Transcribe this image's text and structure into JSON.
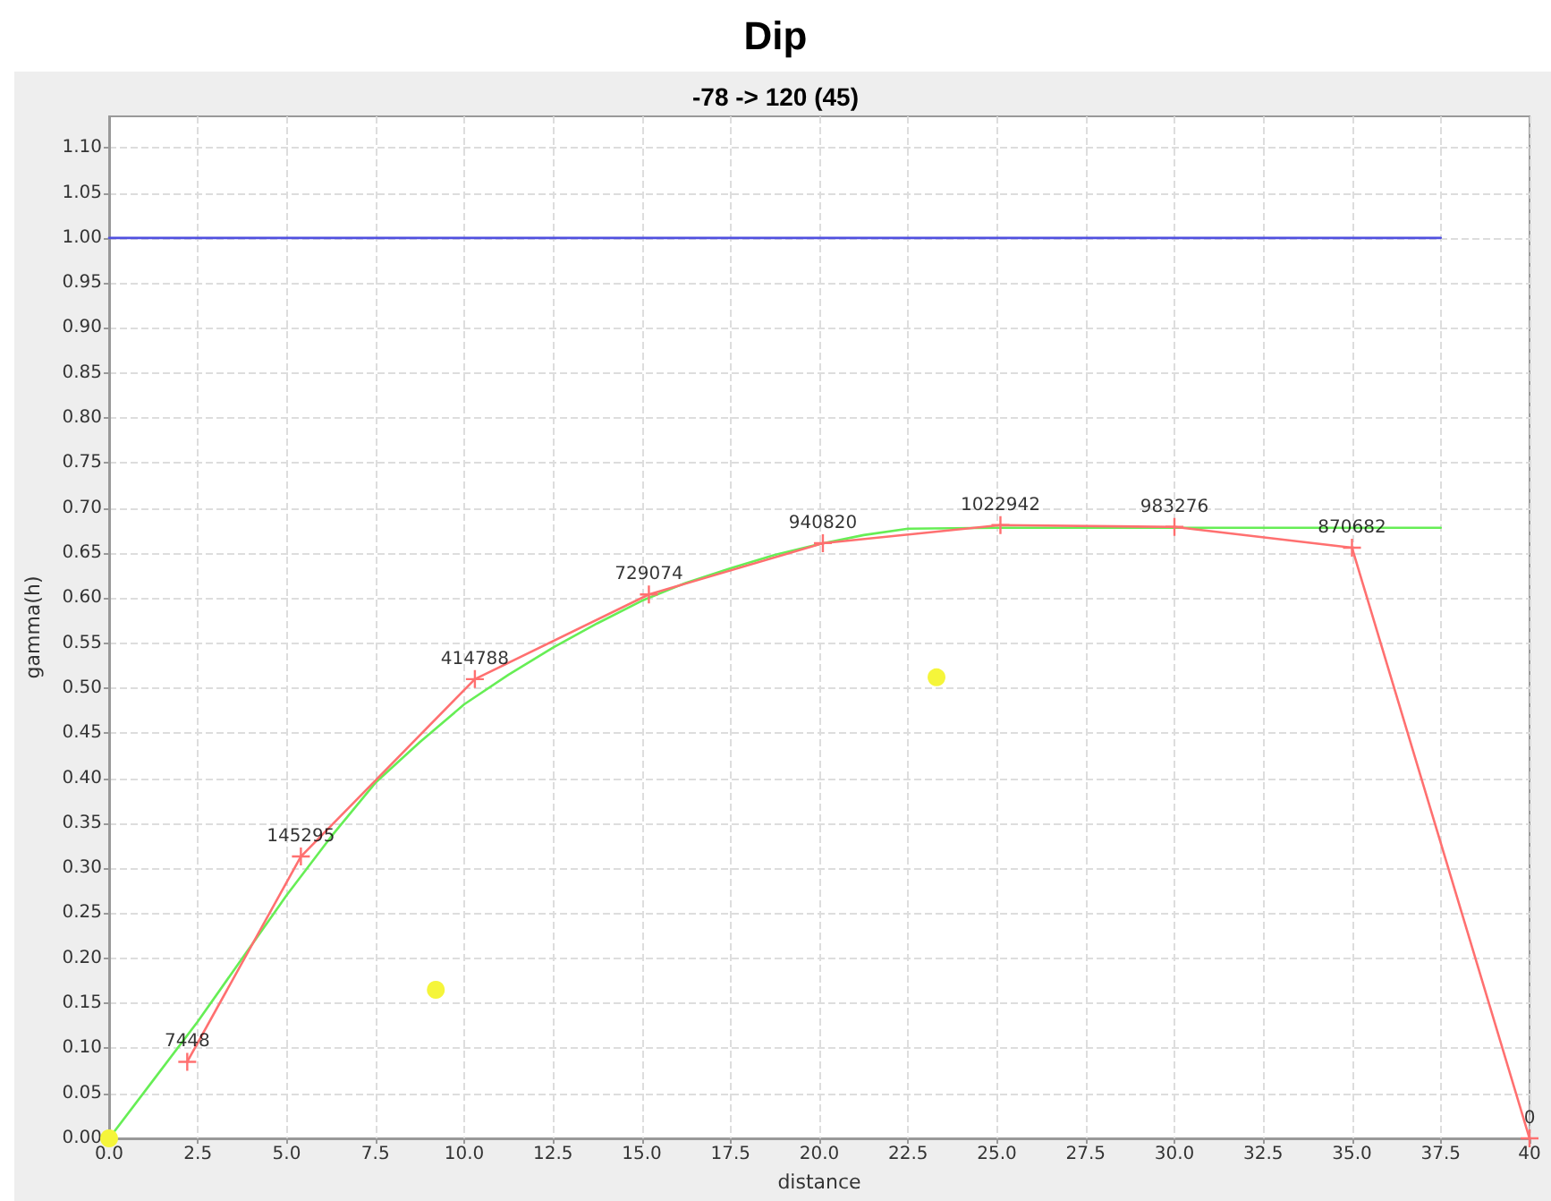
{
  "chart_data": {
    "type": "line",
    "title": "Dip",
    "subtitle": "-78 -> 120 (45)",
    "xlabel": "distance",
    "ylabel": "gamma(h)",
    "xlim": [
      0,
      40
    ],
    "ylim": [
      0,
      1.135
    ],
    "xticks": [
      {
        "value": 0,
        "label": "0.0"
      },
      {
        "value": 2.5,
        "label": "2.5"
      },
      {
        "value": 5,
        "label": "5.0"
      },
      {
        "value": 7.5,
        "label": "7.5"
      },
      {
        "value": 10,
        "label": "10.0"
      },
      {
        "value": 12.5,
        "label": "12.5"
      },
      {
        "value": 15,
        "label": "15.0"
      },
      {
        "value": 17.5,
        "label": "17.5"
      },
      {
        "value": 20,
        "label": "20.0"
      },
      {
        "value": 22.5,
        "label": "22.5"
      },
      {
        "value": 25,
        "label": "25.0"
      },
      {
        "value": 27.5,
        "label": "27.5"
      },
      {
        "value": 30,
        "label": "30.0"
      },
      {
        "value": 32.5,
        "label": "32.5"
      },
      {
        "value": 35,
        "label": "35.0"
      },
      {
        "value": 37.5,
        "label": "37.5"
      },
      {
        "value": 40,
        "label": "40"
      }
    ],
    "yticks": [
      {
        "value": 0,
        "label": "0.00"
      },
      {
        "value": 0.05,
        "label": "0.05"
      },
      {
        "value": 0.1,
        "label": "0.10"
      },
      {
        "value": 0.15,
        "label": "0.15"
      },
      {
        "value": 0.2,
        "label": "0.20"
      },
      {
        "value": 0.25,
        "label": "0.25"
      },
      {
        "value": 0.3,
        "label": "0.30"
      },
      {
        "value": 0.35,
        "label": "0.35"
      },
      {
        "value": 0.4,
        "label": "0.40"
      },
      {
        "value": 0.45,
        "label": "0.45"
      },
      {
        "value": 0.5,
        "label": "0.50"
      },
      {
        "value": 0.55,
        "label": "0.55"
      },
      {
        "value": 0.6,
        "label": "0.60"
      },
      {
        "value": 0.65,
        "label": "0.65"
      },
      {
        "value": 0.7,
        "label": "0.70"
      },
      {
        "value": 0.75,
        "label": "0.75"
      },
      {
        "value": 0.8,
        "label": "0.80"
      },
      {
        "value": 0.85,
        "label": "0.85"
      },
      {
        "value": 0.9,
        "label": "0.90"
      },
      {
        "value": 0.95,
        "label": "0.95"
      },
      {
        "value": 1,
        "label": "1.00"
      },
      {
        "value": 1.05,
        "label": "1.05"
      },
      {
        "value": 1.1,
        "label": "1.10"
      }
    ],
    "grid": true,
    "annotations": [
      {
        "text": "7448",
        "x": 2.2,
        "y": 0.085
      },
      {
        "text": "145295",
        "x": 5.4,
        "y": 0.313
      },
      {
        "text": "414788",
        "x": 10.3,
        "y": 0.51
      },
      {
        "text": "729074",
        "x": 15.2,
        "y": 0.604
      },
      {
        "text": "940820",
        "x": 20.1,
        "y": 0.661
      },
      {
        "text": "1022942",
        "x": 25.1,
        "y": 0.681
      },
      {
        "text": "983276",
        "x": 30,
        "y": 0.679
      },
      {
        "text": "870682",
        "x": 35,
        "y": 0.656
      },
      {
        "text": "0",
        "x": 40,
        "y": 0
      }
    ],
    "series": [
      {
        "color": "#5050e0",
        "marker": "none",
        "x": [
          0,
          37.5
        ],
        "values": [
          1,
          1
        ]
      },
      {
        "color": "#66ee55",
        "marker": "none",
        "x": [
          0,
          1.25,
          2.5,
          3.75,
          5,
          6.25,
          7.5,
          8.75,
          10,
          11.25,
          12.5,
          13.75,
          15,
          16.25,
          17.5,
          18.75,
          20,
          21.25,
          22.5,
          25,
          37.5
        ],
        "values": [
          0,
          0.065,
          0.13,
          0.2,
          0.27,
          0.335,
          0.395,
          0.44,
          0.482,
          0.515,
          0.545,
          0.572,
          0.597,
          0.617,
          0.633,
          0.648,
          0.66,
          0.67,
          0.677,
          0.678,
          0.678
        ]
      },
      {
        "color": "#ff7070",
        "marker": "cross",
        "x": [
          2.2,
          5.4,
          10.3,
          15.2,
          20.1,
          25.1,
          30,
          35,
          40
        ],
        "values": [
          0.085,
          0.313,
          0.51,
          0.604,
          0.661,
          0.681,
          0.679,
          0.656,
          0
        ]
      },
      {
        "type": "scatter",
        "color": "#f5f53a",
        "marker": "circle",
        "x": [
          0,
          9.2,
          23.3
        ],
        "values": [
          0,
          0.165,
          0.512
        ]
      }
    ]
  }
}
